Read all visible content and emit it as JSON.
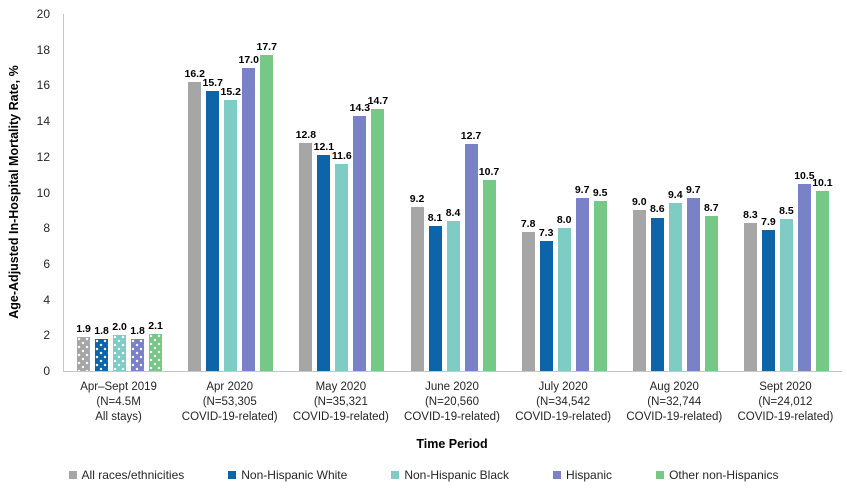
{
  "chart_data": {
    "type": "bar",
    "title": "",
    "xlabel": "Time Period",
    "ylabel": "Age-Adjusted In-Hospital Mortality Rate, %",
    "ylim": [
      0,
      20
    ],
    "yticks": [
      0,
      2,
      4,
      6,
      8,
      10,
      12,
      14,
      16,
      18,
      20
    ],
    "grid": false,
    "legend_position": "bottom",
    "patterned_category": 0,
    "categories": [
      [
        "Apr–Sept 2019",
        "(N=4.5M",
        "All stays)"
      ],
      [
        "Apr 2020",
        "(N=53,305",
        "COVID-19-related)"
      ],
      [
        "May 2020",
        "(N=35,321",
        "COVID-19-related)"
      ],
      [
        "June 2020",
        "(N=20,560",
        "COVID-19-related)"
      ],
      [
        "July 2020",
        "(N=34,542",
        "COVID-19-related)"
      ],
      [
        "Aug 2020",
        "(N=32,744",
        "COVID-19-related)"
      ],
      [
        "Sept 2020",
        "(N=24,012",
        "COVID-19-related)"
      ]
    ],
    "series": [
      {
        "name": "All races/ethnicities",
        "color": "#A6A6A6",
        "values": [
          1.9,
          16.2,
          12.8,
          9.2,
          7.8,
          9.0,
          8.3
        ]
      },
      {
        "name": "Non-Hispanic White",
        "color": "#0D64A8",
        "values": [
          1.8,
          15.7,
          12.1,
          8.1,
          7.3,
          8.6,
          7.9
        ]
      },
      {
        "name": "Non-Hispanic Black",
        "color": "#7FCCC4",
        "values": [
          2.0,
          15.2,
          11.6,
          8.4,
          8.0,
          9.4,
          8.5
        ]
      },
      {
        "name": "Hispanic",
        "color": "#7A82C7",
        "values": [
          1.8,
          17.0,
          14.3,
          12.7,
          9.7,
          9.7,
          10.5
        ]
      },
      {
        "name": "Other non-Hispanics",
        "color": "#76C886",
        "values": [
          2.1,
          17.7,
          14.7,
          10.7,
          9.5,
          8.7,
          10.1
        ]
      }
    ]
  }
}
